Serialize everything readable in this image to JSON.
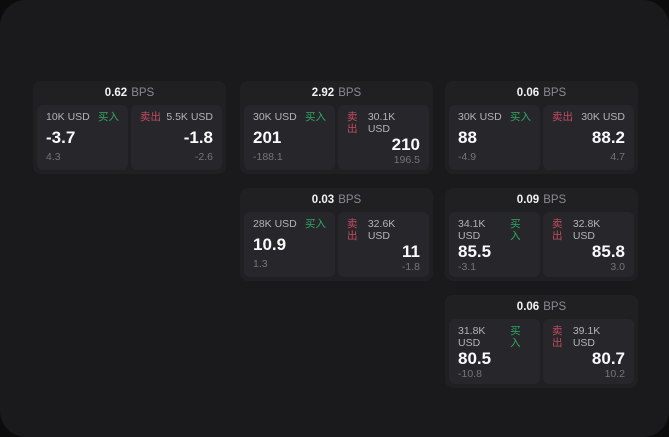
{
  "labels": {
    "bps_unit": "BPS",
    "buy": "买入",
    "sell": "卖出"
  },
  "colors": {
    "panel_bg": "#1a1a1c",
    "card_bg": "#202023",
    "cell_bg": "#27272b",
    "buy_green": "#2fa862",
    "sell_red": "#c34b60"
  },
  "cards": [
    {
      "bps": "0.62",
      "buy": {
        "amount": "10K USD",
        "value": "-3.7",
        "delta": "4.3"
      },
      "sell": {
        "amount": "5.5K USD",
        "value": "-1.8",
        "delta": "-2.6"
      }
    },
    {
      "bps": "2.92",
      "buy": {
        "amount": "30K USD",
        "value": "201",
        "delta": "-188.1"
      },
      "sell": {
        "amount": "30.1K USD",
        "value": "210",
        "delta": "196.5"
      }
    },
    {
      "bps": "0.06",
      "buy": {
        "amount": "30K USD",
        "value": "88",
        "delta": "-4.9"
      },
      "sell": {
        "amount": "30K USD",
        "value": "88.2",
        "delta": "4.7"
      }
    },
    {
      "bps": "0.03",
      "buy": {
        "amount": "28K USD",
        "value": "10.9",
        "delta": "1.3"
      },
      "sell": {
        "amount": "32.6K USD",
        "value": "11",
        "delta": "-1.8"
      }
    },
    {
      "bps": "0.09",
      "buy": {
        "amount": "34.1K USD",
        "value": "85.5",
        "delta": "-3.1"
      },
      "sell": {
        "amount": "32.8K USD",
        "value": "85.8",
        "delta": "3.0"
      }
    },
    {
      "bps": "0.06",
      "buy": {
        "amount": "31.8K USD",
        "value": "80.5",
        "delta": "-10.8"
      },
      "sell": {
        "amount": "39.1K USD",
        "value": "80.7",
        "delta": "10.2"
      }
    }
  ]
}
